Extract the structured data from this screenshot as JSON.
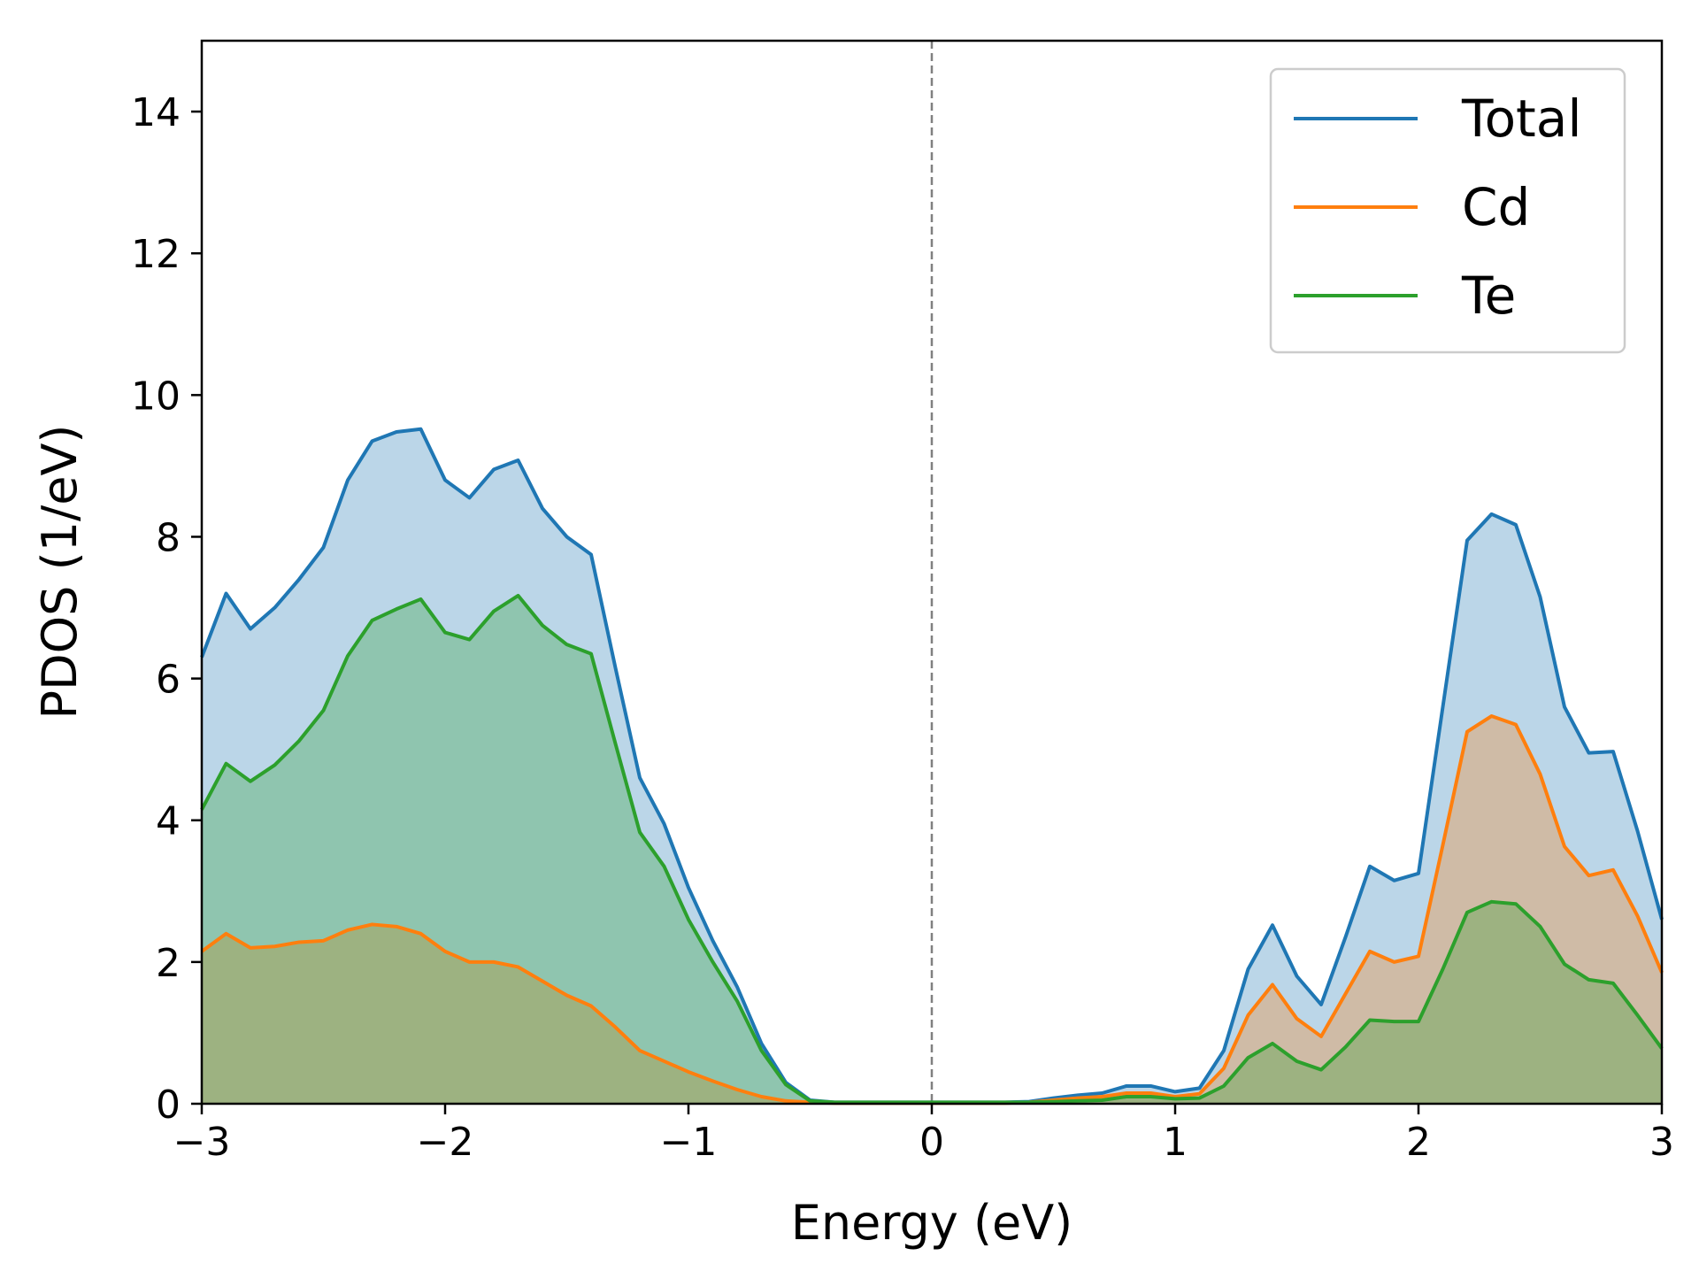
{
  "chart_data": {
    "type": "area",
    "title": "",
    "xlabel": "Energy (eV)",
    "ylabel": "PDOS (1/eV)",
    "xlim": [
      -3,
      3
    ],
    "ylim": [
      0,
      15
    ],
    "xticks": [
      -3,
      -2,
      -1,
      0,
      1,
      2,
      3
    ],
    "xtick_labels": [
      "−3",
      "−2",
      "−1",
      "0",
      "1",
      "2",
      "3"
    ],
    "yticks": [
      0,
      2,
      4,
      6,
      8,
      10,
      12,
      14
    ],
    "ytick_labels": [
      "0",
      "2",
      "4",
      "6",
      "8",
      "10",
      "12",
      "14"
    ],
    "grid": false,
    "legend_position": "top-right",
    "vline": {
      "x": 0,
      "style": "dashed",
      "color": "#808080"
    },
    "x": [
      -3.0,
      -2.9,
      -2.8,
      -2.7,
      -2.6,
      -2.5,
      -2.4,
      -2.3,
      -2.2,
      -2.1,
      -2.0,
      -1.9,
      -1.8,
      -1.7,
      -1.6,
      -1.5,
      -1.4,
      -1.3,
      -1.2,
      -1.1,
      -1.0,
      -0.9,
      -0.8,
      -0.7,
      -0.6,
      -0.5,
      -0.4,
      -0.3,
      -0.2,
      -0.1,
      0.0,
      0.1,
      0.2,
      0.3,
      0.4,
      0.5,
      0.6,
      0.7,
      0.8,
      0.9,
      1.0,
      1.1,
      1.2,
      1.3,
      1.4,
      1.5,
      1.6,
      1.7,
      1.8,
      1.9,
      2.0,
      2.1,
      2.2,
      2.3,
      2.4,
      2.5,
      2.6,
      2.7,
      2.8,
      2.9,
      3.0
    ],
    "series": [
      {
        "name": "Total",
        "color": "#1f77b4",
        "fill": "rgba(31,119,180,0.30)",
        "values": [
          6.3,
          7.2,
          6.7,
          7.0,
          7.4,
          7.85,
          8.8,
          9.35,
          9.48,
          9.52,
          8.8,
          8.55,
          8.95,
          9.08,
          8.4,
          8.0,
          7.75,
          6.15,
          4.6,
          3.95,
          3.05,
          2.3,
          1.65,
          0.85,
          0.3,
          0.05,
          0.02,
          0.02,
          0.02,
          0.02,
          0.02,
          0.02,
          0.02,
          0.02,
          0.03,
          0.08,
          0.12,
          0.15,
          0.25,
          0.25,
          0.17,
          0.22,
          0.75,
          1.9,
          2.52,
          1.8,
          1.4,
          2.35,
          3.35,
          3.15,
          3.25,
          5.6,
          7.95,
          8.32,
          8.17,
          7.15,
          5.6,
          4.95,
          4.97,
          3.85,
          2.6
        ]
      },
      {
        "name": "Cd",
        "color": "#ff7f0e",
        "fill": "rgba(255,127,14,0.30)",
        "values": [
          2.15,
          2.4,
          2.2,
          2.22,
          2.28,
          2.3,
          2.45,
          2.53,
          2.5,
          2.4,
          2.15,
          2.0,
          2.0,
          1.93,
          1.73,
          1.53,
          1.38,
          1.08,
          0.75,
          0.6,
          0.45,
          0.32,
          0.2,
          0.1,
          0.04,
          0.02,
          0.01,
          0.01,
          0.01,
          0.01,
          0.01,
          0.01,
          0.01,
          0.01,
          0.02,
          0.05,
          0.08,
          0.1,
          0.15,
          0.15,
          0.1,
          0.14,
          0.5,
          1.25,
          1.68,
          1.2,
          0.95,
          1.55,
          2.15,
          2.0,
          2.08,
          3.65,
          5.25,
          5.47,
          5.35,
          4.65,
          3.63,
          3.22,
          3.3,
          2.65,
          1.85
        ]
      },
      {
        "name": "Te",
        "color": "#2ca02c",
        "fill": "rgba(44,160,44,0.30)",
        "values": [
          4.15,
          4.8,
          4.55,
          4.78,
          5.12,
          5.55,
          6.32,
          6.82,
          6.98,
          7.12,
          6.65,
          6.55,
          6.95,
          7.17,
          6.75,
          6.48,
          6.35,
          5.08,
          3.83,
          3.35,
          2.6,
          2.0,
          1.45,
          0.75,
          0.27,
          0.04,
          0.02,
          0.02,
          0.02,
          0.02,
          0.02,
          0.02,
          0.02,
          0.02,
          0.02,
          0.03,
          0.04,
          0.05,
          0.1,
          0.1,
          0.07,
          0.08,
          0.25,
          0.65,
          0.85,
          0.6,
          0.48,
          0.8,
          1.18,
          1.16,
          1.16,
          1.9,
          2.7,
          2.85,
          2.82,
          2.5,
          1.97,
          1.75,
          1.7,
          1.25,
          0.78
        ]
      }
    ]
  }
}
